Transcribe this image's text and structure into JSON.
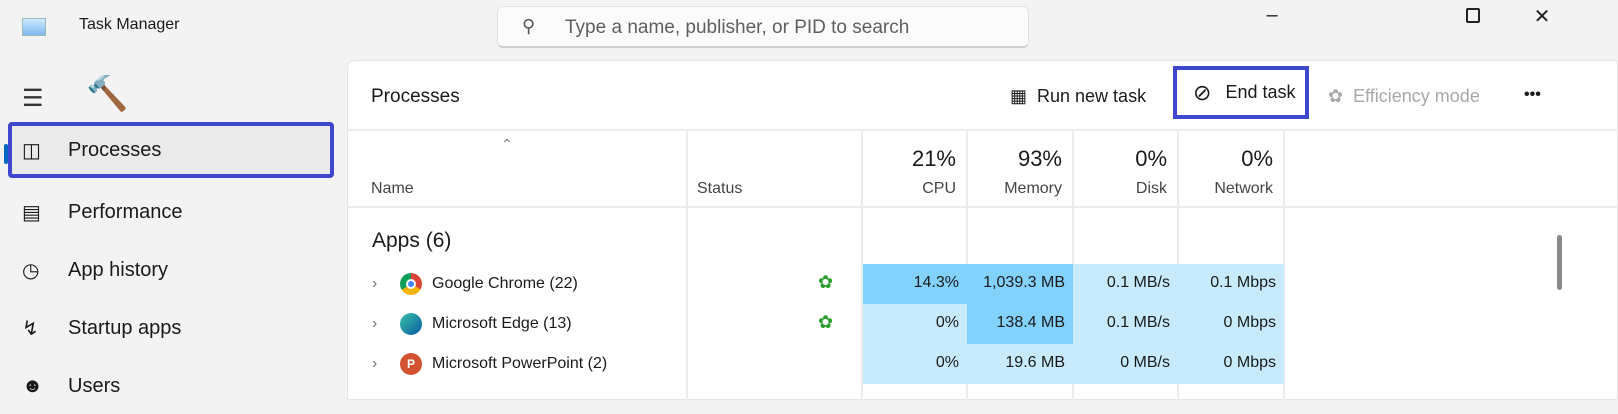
{
  "window": {
    "title": "Task Manager",
    "search_placeholder": "Type a name, publisher, or PID to search"
  },
  "sidebar": {
    "items": [
      {
        "label": "Processes",
        "icon": "processes-icon",
        "selected": true
      },
      {
        "label": "Performance",
        "icon": "performance-icon"
      },
      {
        "label": "App history",
        "icon": "history-icon"
      },
      {
        "label": "Startup apps",
        "icon": "startup-icon"
      },
      {
        "label": "Users",
        "icon": "users-icon"
      }
    ]
  },
  "toolbar": {
    "title": "Processes",
    "run_new_task": "Run new task",
    "end_task": "End task",
    "efficiency_mode": "Efficiency mode",
    "more": "•••"
  },
  "columns": {
    "name": "Name",
    "status": "Status",
    "cpu": {
      "label": "CPU",
      "pct": "21%"
    },
    "memory": {
      "label": "Memory",
      "pct": "93%"
    },
    "disk": {
      "label": "Disk",
      "pct": "0%"
    },
    "network": {
      "label": "Network",
      "pct": "0%"
    }
  },
  "groups": {
    "apps": "Apps (6)"
  },
  "rows": [
    {
      "name": "Google Chrome (22)",
      "efficiency": true,
      "cpu": "14.3%",
      "memory": "1,039.3 MB",
      "disk": "0.1 MB/s",
      "network": "0.1 Mbps"
    },
    {
      "name": "Microsoft Edge (13)",
      "efficiency": true,
      "cpu": "0%",
      "memory": "138.4 MB",
      "disk": "0.1 MB/s",
      "network": "0 Mbps"
    },
    {
      "name": "Microsoft PowerPoint (2)",
      "efficiency": false,
      "cpu": "0%",
      "memory": "19.6 MB",
      "disk": "0 MB/s",
      "network": "0 Mbps"
    }
  ],
  "colors": {
    "highlight": "#3f48cc",
    "heat_light": "#c7eafd",
    "heat_dark": "#83d1fd"
  }
}
